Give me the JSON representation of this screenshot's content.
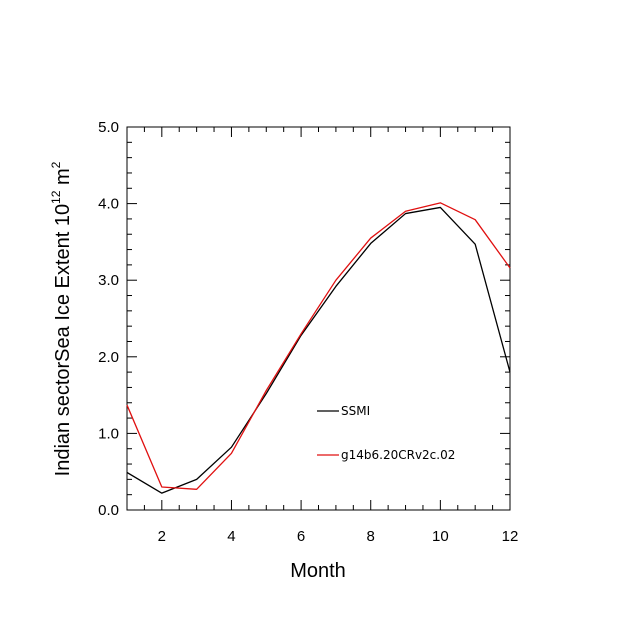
{
  "chart_data": {
    "type": "line",
    "title": "",
    "xlabel": "Month",
    "ylabel": {
      "prefix": "Indian sectorSea Ice Extent 10",
      "exp1": "12",
      "unit": " m",
      "exp2": "2"
    },
    "xlim": [
      1,
      12
    ],
    "ylim": [
      0,
      5
    ],
    "xticks": [
      2,
      4,
      6,
      8,
      10,
      12
    ],
    "yticks": [
      0,
      1,
      2,
      3,
      4,
      5
    ],
    "ytick_labels": [
      "0.0",
      "1.0",
      "2.0",
      "3.0",
      "4.0",
      "5.0"
    ],
    "grid": false,
    "legend_position": "center-right",
    "x": [
      1,
      2,
      3,
      4,
      5,
      6,
      7,
      8,
      9,
      10,
      11,
      12
    ],
    "series": [
      {
        "name": "SSMI",
        "color": "#000000",
        "values": [
          0.49,
          0.22,
          0.4,
          0.82,
          1.52,
          2.28,
          2.92,
          3.48,
          3.87,
          3.95,
          3.47,
          1.8
        ]
      },
      {
        "name": "g14b6.20CRv2c.02",
        "color": "#e01010",
        "values": [
          1.37,
          0.3,
          0.27,
          0.74,
          1.56,
          2.3,
          3.0,
          3.55,
          3.9,
          4.01,
          3.79,
          3.16
        ]
      }
    ]
  }
}
